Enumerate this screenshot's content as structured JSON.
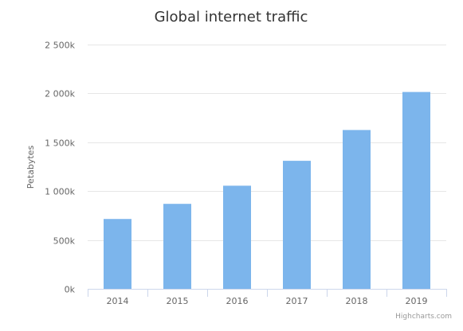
{
  "chart_data": {
    "type": "bar",
    "title": "Global internet traffic",
    "ylabel": "Petabytes",
    "xlabel": "",
    "categories": [
      "2014",
      "2015",
      "2016",
      "2017",
      "2018",
      "2019"
    ],
    "values": [
      715000,
      870000,
      1055000,
      1310000,
      1625000,
      2015000
    ],
    "ylim": [
      0,
      2500000
    ],
    "yticks": [
      0,
      500000,
      1000000,
      1500000,
      2000000,
      2500000
    ],
    "ytick_labels": [
      "0k",
      "500k",
      "1 000k",
      "1 500k",
      "2 000k",
      "2 500k"
    ],
    "bar_color": "#7cb5ec",
    "grid": true,
    "legend": false
  },
  "credits": "Highcharts.com"
}
